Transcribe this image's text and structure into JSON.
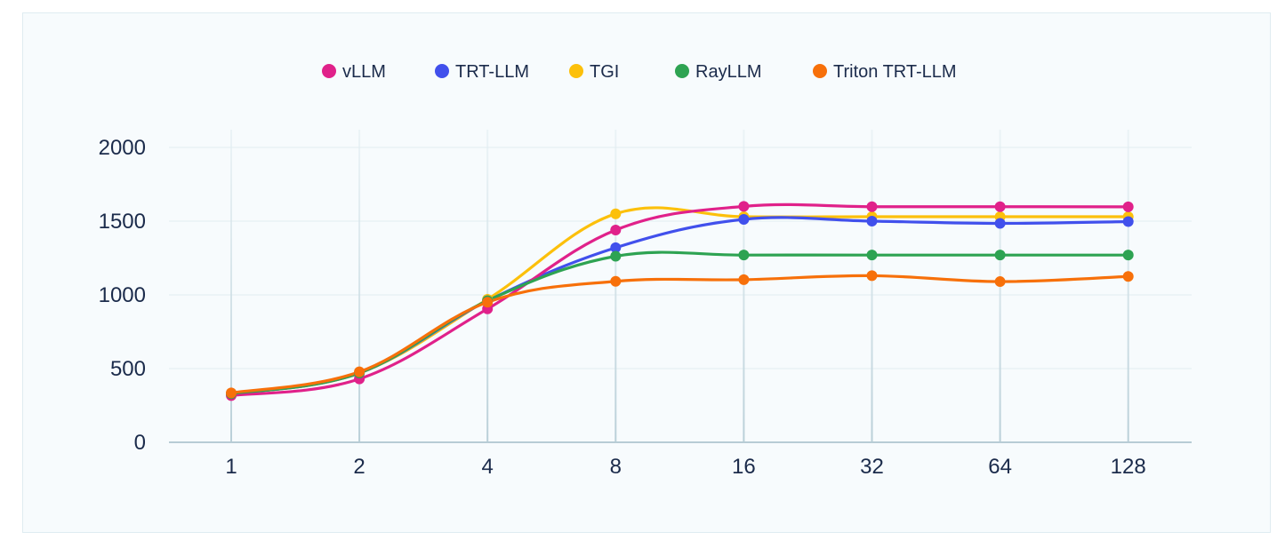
{
  "chart_data": {
    "type": "line",
    "title": "",
    "xlabel": "",
    "ylabel": "",
    "categories": [
      "1",
      "2",
      "4",
      "8",
      "16",
      "32",
      "64",
      "128"
    ],
    "ylim": [
      0,
      2000
    ],
    "yticks": [
      "0",
      "500",
      "1000",
      "1500",
      "2000"
    ],
    "grid": true,
    "legend_position": "top-center",
    "series": [
      {
        "name": "vLLM",
        "color": "#e0218a",
        "values": [
          317,
          430,
          905,
          1440,
          1600,
          1598,
          1598,
          1597
        ]
      },
      {
        "name": "TRT-LLM",
        "color": "#4150ec",
        "values": [
          330,
          470,
          960,
          1320,
          1512,
          1500,
          1485,
          1497
        ]
      },
      {
        "name": "TGI",
        "color": "#fcc00b",
        "values": [
          330,
          470,
          970,
          1550,
          1530,
          1530,
          1530,
          1530
        ]
      },
      {
        "name": "RayLLM",
        "color": "#2ea352",
        "values": [
          330,
          470,
          960,
          1262,
          1270,
          1270,
          1270,
          1270
        ]
      },
      {
        "name": "Triton TRT-LLM",
        "color": "#f7700a",
        "values": [
          335,
          478,
          950,
          1092,
          1103,
          1130,
          1090,
          1125
        ]
      }
    ]
  }
}
